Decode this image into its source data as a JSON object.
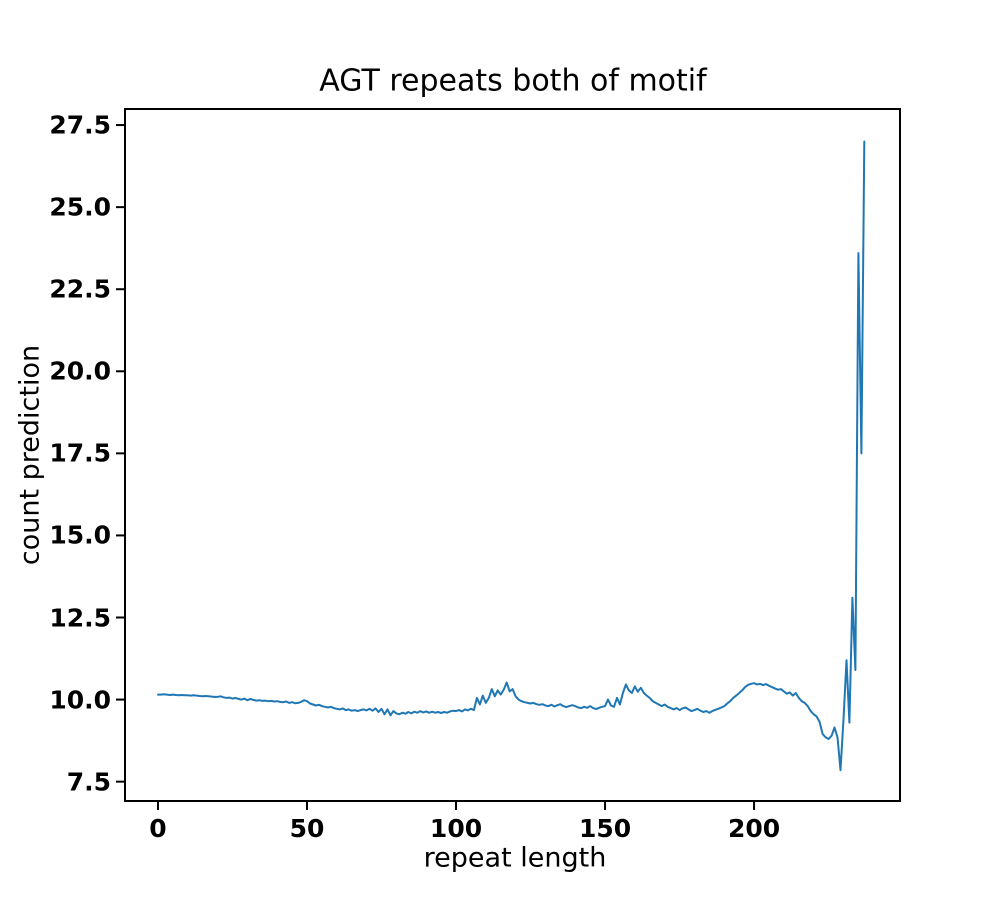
{
  "chart_data": {
    "type": "line",
    "title": "AGT repeats both of motif",
    "xlabel": "repeat length",
    "ylabel": "count prediction",
    "line_color": "#1f77b4",
    "grid": false,
    "legend": null,
    "xlim": [
      -11.4,
      249.3
    ],
    "ylim": [
      6.88,
      28.02
    ],
    "xticks": [
      0,
      50,
      100,
      150,
      200
    ],
    "xtick_labels": [
      "0",
      "50",
      "100",
      "150",
      "200"
    ],
    "yticks": [
      7.5,
      10.0,
      12.5,
      15.0,
      17.5,
      20.0,
      22.5,
      25.0,
      27.5
    ],
    "ytick_labels": [
      "7.5",
      "10.0",
      "12.5",
      "15.0",
      "17.5",
      "20.0",
      "22.5",
      "25.0",
      "27.5"
    ],
    "x_start": 0,
    "x_step": 1,
    "y": [
      10.15,
      10.15,
      10.16,
      10.15,
      10.14,
      10.15,
      10.14,
      10.13,
      10.14,
      10.13,
      10.13,
      10.12,
      10.13,
      10.12,
      10.11,
      10.1,
      10.11,
      10.1,
      10.09,
      10.08,
      10.08,
      10.1,
      10.07,
      10.05,
      10.06,
      10.03,
      10.05,
      10.02,
      10.0,
      10.03,
      9.98,
      10.02,
      9.99,
      9.97,
      9.98,
      9.96,
      9.97,
      9.95,
      9.96,
      9.94,
      9.95,
      9.93,
      9.92,
      9.94,
      9.9,
      9.92,
      9.89,
      9.9,
      9.93,
      9.98,
      9.95,
      9.88,
      9.85,
      9.82,
      9.84,
      9.8,
      9.78,
      9.76,
      9.78,
      9.74,
      9.72,
      9.7,
      9.73,
      9.68,
      9.7,
      9.66,
      9.68,
      9.65,
      9.68,
      9.7,
      9.67,
      9.72,
      9.66,
      9.73,
      9.62,
      9.72,
      9.55,
      9.7,
      9.52,
      9.65,
      9.58,
      9.55,
      9.6,
      9.57,
      9.62,
      9.58,
      9.63,
      9.6,
      9.65,
      9.61,
      9.64,
      9.6,
      9.63,
      9.6,
      9.62,
      9.59,
      9.62,
      9.6,
      9.64,
      9.66,
      9.65,
      9.68,
      9.64,
      9.7,
      9.67,
      9.72,
      9.68,
      10.05,
      9.85,
      10.12,
      9.9,
      10.05,
      10.32,
      10.1,
      10.28,
      10.15,
      10.3,
      10.52,
      10.25,
      10.32,
      10.1,
      10.0,
      9.95,
      9.92,
      9.9,
      9.88,
      9.9,
      9.86,
      9.84,
      9.86,
      9.82,
      9.8,
      9.84,
      9.79,
      9.83,
      9.86,
      9.8,
      9.77,
      9.8,
      9.83,
      9.8,
      9.76,
      9.74,
      9.78,
      9.75,
      9.8,
      9.74,
      9.71,
      9.75,
      9.78,
      9.8,
      10.0,
      9.82,
      9.78,
      10.05,
      9.85,
      10.2,
      10.46,
      10.28,
      10.2,
      10.4,
      10.24,
      10.36,
      10.2,
      10.12,
      10.05,
      9.95,
      9.9,
      9.85,
      9.8,
      9.85,
      9.78,
      9.74,
      9.7,
      9.74,
      9.68,
      9.73,
      9.76,
      9.7,
      9.65,
      9.68,
      9.72,
      9.66,
      9.62,
      9.65,
      9.6,
      9.65,
      9.69,
      9.72,
      9.76,
      9.8,
      9.88,
      9.95,
      10.05,
      10.12,
      10.2,
      10.28,
      10.38,
      10.45,
      10.48,
      10.5,
      10.46,
      10.48,
      10.44,
      10.47,
      10.42,
      10.38,
      10.34,
      10.3,
      10.32,
      10.25,
      10.18,
      10.22,
      10.12,
      10.2,
      10.05,
      9.95,
      9.9,
      9.8,
      9.65,
      9.55,
      9.48,
      9.32,
      8.95,
      8.85,
      8.8,
      8.9,
      9.15,
      8.85,
      7.85,
      9.4,
      11.2,
      9.3,
      13.1,
      10.9,
      23.6,
      17.5,
      27.0
    ]
  }
}
